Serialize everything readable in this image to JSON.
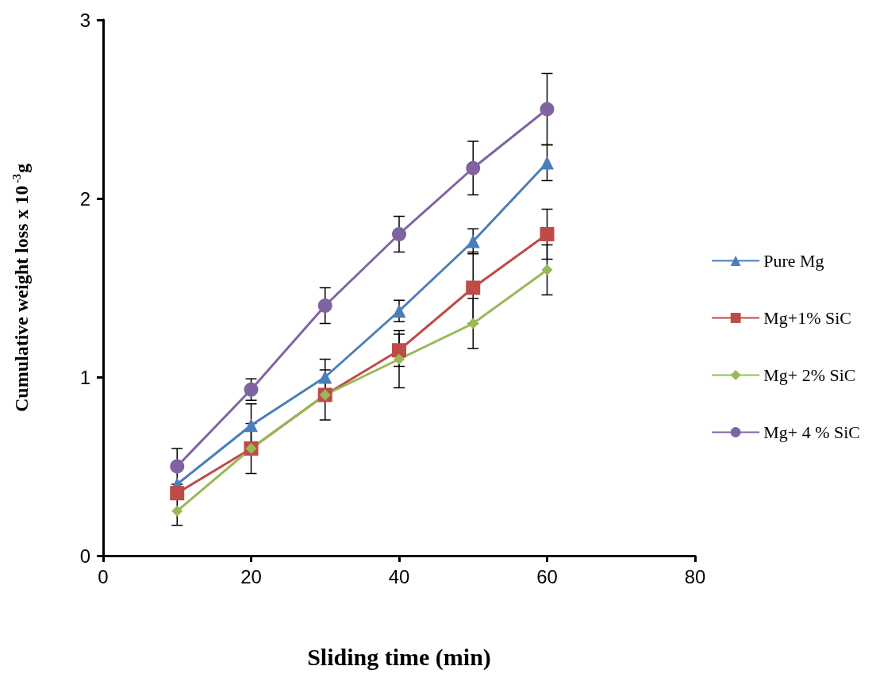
{
  "chart_data": {
    "type": "line",
    "xlabel": "Sliding time (min)",
    "ylabel": "Cumulative weight loss x 10$^{-3}$g",
    "x": [
      10,
      20,
      30,
      40,
      50,
      60
    ],
    "series": [
      {
        "name": "Pure Mg",
        "color": "#4a7ebb",
        "marker": "triangle",
        "values": [
          0.4,
          0.73,
          1.0,
          1.37,
          1.76,
          2.2
        ],
        "errors": [
          null,
          0.12,
          0.1,
          0.06,
          0.07,
          0.1
        ]
      },
      {
        "name": "Mg+1% SiC",
        "color": "#be4b48",
        "marker": "square",
        "values": [
          0.35,
          0.6,
          0.9,
          1.15,
          1.5,
          1.8
        ],
        "errors": [
          null,
          0.14,
          0.14,
          0.09,
          0.2,
          0.14
        ]
      },
      {
        "name": "Mg+ 2% SiC",
        "color": "#98b954",
        "marker": "diamond",
        "values": [
          0.25,
          0.6,
          0.9,
          1.1,
          1.3,
          1.6
        ],
        "errors": [
          0.08,
          null,
          null,
          0.16,
          0.14,
          0.14
        ]
      },
      {
        "name": "Mg+ 4 % SiC",
        "color": "#8064a2",
        "marker": "circle",
        "values": [
          0.5,
          0.93,
          1.4,
          1.8,
          2.17,
          2.5
        ],
        "errors": [
          0.1,
          0.06,
          0.1,
          0.1,
          0.15,
          0.2
        ]
      }
    ],
    "xlim": [
      0,
      80
    ],
    "xticks": [
      0,
      20,
      40,
      60,
      80
    ],
    "ylim": [
      0,
      3
    ],
    "yticks": [
      0,
      1,
      2,
      3
    ],
    "grid": false,
    "legend": "right"
  }
}
